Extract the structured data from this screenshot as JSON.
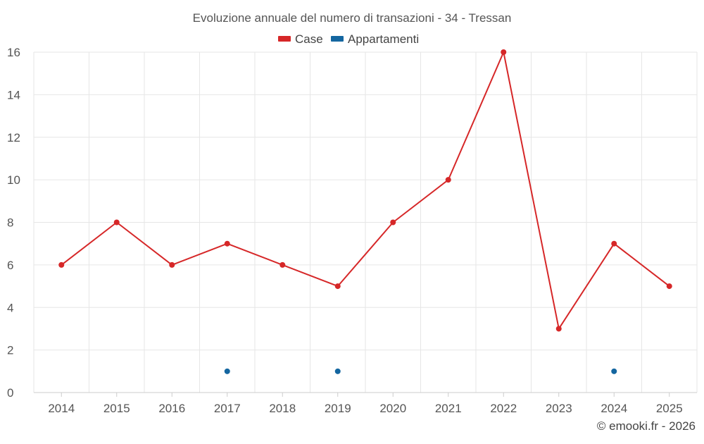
{
  "chart_data": {
    "type": "line",
    "title": "Evoluzione annuale del numero di transazioni - 34 - Tressan",
    "categories": [
      "2014",
      "2015",
      "2016",
      "2017",
      "2018",
      "2019",
      "2020",
      "2021",
      "2022",
      "2023",
      "2024",
      "2025"
    ],
    "series": [
      {
        "name": "Case",
        "color": "#d62728",
        "values": [
          6,
          8,
          6,
          7,
          6,
          5,
          8,
          10,
          16,
          3,
          7,
          5
        ],
        "line": true
      },
      {
        "name": "Appartamenti",
        "color": "#1466a0",
        "values": [
          null,
          null,
          null,
          1,
          null,
          1,
          null,
          null,
          null,
          null,
          1,
          null
        ],
        "line": false
      }
    ],
    "ylim": [
      0,
      16
    ],
    "yticks": [
      0,
      2,
      4,
      6,
      8,
      10,
      12,
      14,
      16
    ],
    "xlabel": "",
    "ylabel": "",
    "grid": true,
    "legend_position": "top-center"
  },
  "credit": "© emooki.fr - 2026"
}
